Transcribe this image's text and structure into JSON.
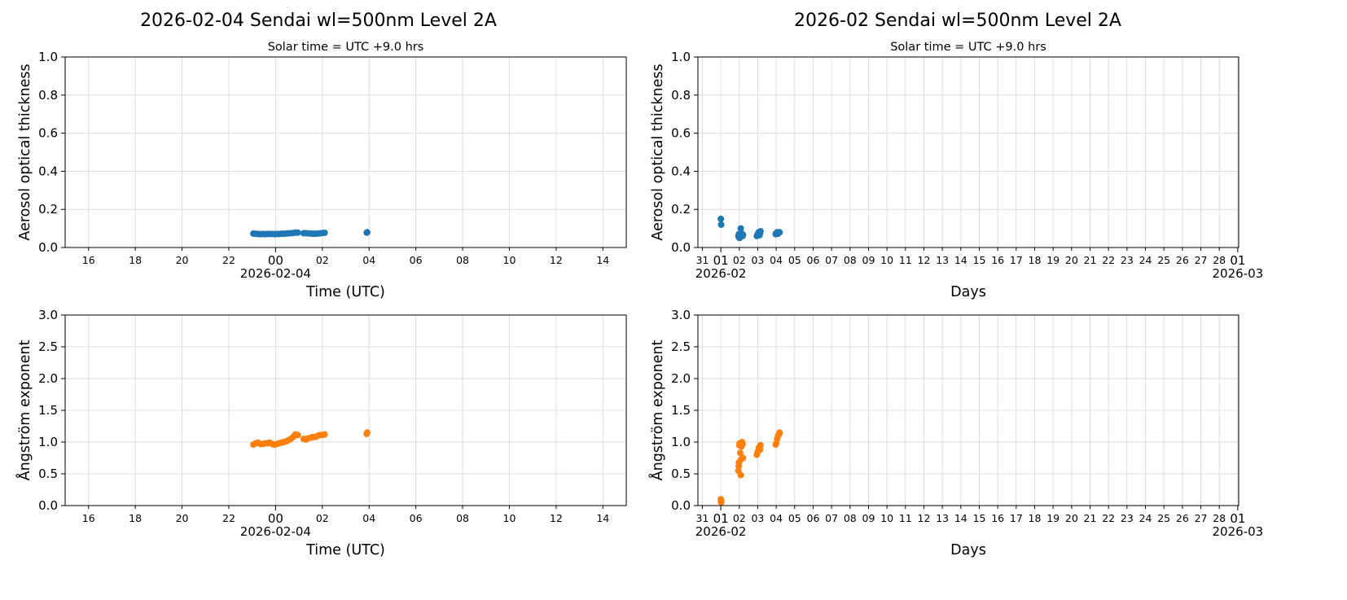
{
  "figure_titles": [
    "2026-02-04  Sendai  wl=500nm  Level 2A",
    "2026-02  Sendai  wl=500nm  Level 2A"
  ],
  "chart_data": [
    {
      "id": "daily-aot",
      "type": "scatter",
      "subtitle": "Solar time = UTC +9.0 hrs",
      "xlabel": "Time (UTC)",
      "ylabel": "Aerosol optical thickness",
      "xunit": "hours relative to 2026-02-04 00:00 UTC",
      "xlim": [
        -9,
        15
      ],
      "ylim": [
        0,
        1
      ],
      "grid": true,
      "color": "#1f77b4",
      "yticks": [
        {
          "v": 0,
          "l": "0.0"
        },
        {
          "v": 0.2,
          "l": "0.2"
        },
        {
          "v": 0.4,
          "l": "0.4"
        },
        {
          "v": 0.6,
          "l": "0.6"
        },
        {
          "v": 0.8,
          "l": "0.8"
        },
        {
          "v": 1,
          "l": "1.0"
        }
      ],
      "xticks": [
        {
          "v": -8,
          "l": "16"
        },
        {
          "v": -6,
          "l": "18"
        },
        {
          "v": -4,
          "l": "20"
        },
        {
          "v": -2,
          "l": "22"
        },
        {
          "v": 0,
          "l": "00",
          "major": true,
          "sub": "2026-02-04"
        },
        {
          "v": 2,
          "l": "02"
        },
        {
          "v": 4,
          "l": "04"
        },
        {
          "v": 6,
          "l": "06"
        },
        {
          "v": 8,
          "l": "08"
        },
        {
          "v": 10,
          "l": "10"
        },
        {
          "v": 12,
          "l": "12"
        },
        {
          "v": 14,
          "l": "14"
        }
      ],
      "x": [
        -0.95,
        -0.85,
        -0.75,
        -0.65,
        -0.55,
        -0.45,
        -0.35,
        -0.25,
        -0.15,
        -0.05,
        0.05,
        0.15,
        0.25,
        0.35,
        0.45,
        0.55,
        0.65,
        0.75,
        0.85,
        0.95,
        1.2,
        1.3,
        1.4,
        1.5,
        1.6,
        1.7,
        1.8,
        1.9,
        2.0,
        2.1,
        3.9,
        3.92
      ],
      "y": [
        0.073,
        0.072,
        0.071,
        0.07,
        0.071,
        0.07,
        0.071,
        0.071,
        0.071,
        0.07,
        0.071,
        0.071,
        0.072,
        0.072,
        0.073,
        0.074,
        0.075,
        0.076,
        0.078,
        0.078,
        0.075,
        0.075,
        0.074,
        0.073,
        0.072,
        0.072,
        0.073,
        0.074,
        0.076,
        0.077,
        0.078,
        0.08
      ]
    },
    {
      "id": "daily-ae",
      "type": "scatter",
      "subtitle": "",
      "xlabel": "Time (UTC)",
      "ylabel": "Ångström exponent",
      "xunit": "hours relative to 2026-02-04 00:00 UTC",
      "xlim": [
        -9,
        15
      ],
      "ylim": [
        0,
        3
      ],
      "grid": true,
      "color": "#ff7f0e",
      "yticks": [
        {
          "v": 0,
          "l": "0.0"
        },
        {
          "v": 0.5,
          "l": "0.5"
        },
        {
          "v": 1,
          "l": "1.0"
        },
        {
          "v": 1.5,
          "l": "1.5"
        },
        {
          "v": 2,
          "l": "2.0"
        },
        {
          "v": 2.5,
          "l": "2.5"
        },
        {
          "v": 3,
          "l": "3.0"
        }
      ],
      "xticks": [
        {
          "v": -8,
          "l": "16"
        },
        {
          "v": -6,
          "l": "18"
        },
        {
          "v": -4,
          "l": "20"
        },
        {
          "v": -2,
          "l": "22"
        },
        {
          "v": 0,
          "l": "00",
          "major": true,
          "sub": "2026-02-04"
        },
        {
          "v": 2,
          "l": "02"
        },
        {
          "v": 4,
          "l": "04"
        },
        {
          "v": 6,
          "l": "06"
        },
        {
          "v": 8,
          "l": "08"
        },
        {
          "v": 10,
          "l": "10"
        },
        {
          "v": 12,
          "l": "12"
        },
        {
          "v": 14,
          "l": "14"
        }
      ],
      "x": [
        -0.95,
        -0.85,
        -0.75,
        -0.65,
        -0.55,
        -0.45,
        -0.35,
        -0.25,
        -0.15,
        -0.05,
        0.05,
        0.15,
        0.25,
        0.35,
        0.45,
        0.55,
        0.65,
        0.75,
        0.85,
        0.95,
        1.2,
        1.3,
        1.4,
        1.5,
        1.6,
        1.7,
        1.8,
        1.9,
        2.0,
        2.1,
        3.9,
        3.92
      ],
      "y": [
        0.96,
        0.98,
        0.99,
        0.97,
        0.97,
        0.98,
        0.98,
        0.99,
        0.97,
        0.96,
        0.97,
        0.98,
        0.99,
        1.0,
        1.01,
        1.03,
        1.05,
        1.08,
        1.12,
        1.11,
        1.05,
        1.04,
        1.06,
        1.07,
        1.08,
        1.08,
        1.1,
        1.11,
        1.11,
        1.12,
        1.13,
        1.15
      ]
    },
    {
      "id": "monthly-aot",
      "type": "scatter",
      "subtitle": "Solar time = UTC +9.0 hrs",
      "xlabel": "Days",
      "ylabel": "Aerosol optical thickness",
      "xunit": "days since 2026-02-01",
      "xlim": [
        -1.24,
        28.05
      ],
      "ylim": [
        0,
        1
      ],
      "grid": true,
      "color": "#1f77b4",
      "yticks": [
        {
          "v": 0,
          "l": "0.0"
        },
        {
          "v": 0.2,
          "l": "0.2"
        },
        {
          "v": 0.4,
          "l": "0.4"
        },
        {
          "v": 0.6,
          "l": "0.6"
        },
        {
          "v": 0.8,
          "l": "0.8"
        },
        {
          "v": 1,
          "l": "1.0"
        }
      ],
      "xticks": "days",
      "x": [
        0,
        0.02,
        0.95,
        0.97,
        0.98,
        1.0,
        1.02,
        1.05,
        1.08,
        1.1,
        1.12,
        1.15,
        1.18,
        1.2,
        1.95,
        2.0,
        2.05,
        2.1,
        2.12,
        2.15,
        2.97,
        3.0,
        3.05,
        3.1,
        3.15,
        3.18
      ],
      "y": [
        0.15,
        0.12,
        0.06,
        0.055,
        0.07,
        0.065,
        0.05,
        0.06,
        0.1,
        0.075,
        0.065,
        0.07,
        0.06,
        0.068,
        0.06,
        0.07,
        0.08,
        0.065,
        0.075,
        0.085,
        0.07,
        0.075,
        0.08,
        0.072,
        0.078,
        0.08
      ]
    },
    {
      "id": "monthly-ae",
      "type": "scatter",
      "subtitle": "",
      "xlabel": "Days",
      "ylabel": "Ångström exponent",
      "xunit": "days since 2026-02-01",
      "xlim": [
        -1.24,
        28.05
      ],
      "ylim": [
        0,
        3
      ],
      "grid": true,
      "color": "#ff7f0e",
      "yticks": [
        {
          "v": 0,
          "l": "0.0"
        },
        {
          "v": 0.5,
          "l": "0.5"
        },
        {
          "v": 1,
          "l": "1.0"
        },
        {
          "v": 1.5,
          "l": "1.5"
        },
        {
          "v": 2,
          "l": "2.0"
        },
        {
          "v": 2.5,
          "l": "2.5"
        },
        {
          "v": 3,
          "l": "3.0"
        }
      ],
      "xticks": "days",
      "x": [
        0,
        0.01,
        0.02,
        0.95,
        0.97,
        0.98,
        1.0,
        1.02,
        1.05,
        1.08,
        1.1,
        1.12,
        1.15,
        1.18,
        1.2,
        1.95,
        2.0,
        2.05,
        2.1,
        2.12,
        2.15,
        2.97,
        3.0,
        3.05,
        3.1,
        3.15,
        3.18
      ],
      "y": [
        0.1,
        0.07,
        0.05,
        0.55,
        0.62,
        0.68,
        0.95,
        0.98,
        0.83,
        0.48,
        0.73,
        0.93,
        1.0,
        0.97,
        0.75,
        0.8,
        0.85,
        0.9,
        0.93,
        0.88,
        0.95,
        0.96,
        0.98,
        1.05,
        1.1,
        1.12,
        1.15
      ]
    }
  ],
  "day_ticks": {
    "labels": [
      "31",
      "01",
      "02",
      "03",
      "04",
      "05",
      "06",
      "07",
      "08",
      "09",
      "10",
      "11",
      "12",
      "13",
      "14",
      "15",
      "16",
      "17",
      "18",
      "19",
      "20",
      "21",
      "22",
      "23",
      "24",
      "25",
      "26",
      "27",
      "28",
      "01"
    ],
    "start_value": -1,
    "first_sub": "2026-02",
    "last_sub": "2026-03"
  }
}
